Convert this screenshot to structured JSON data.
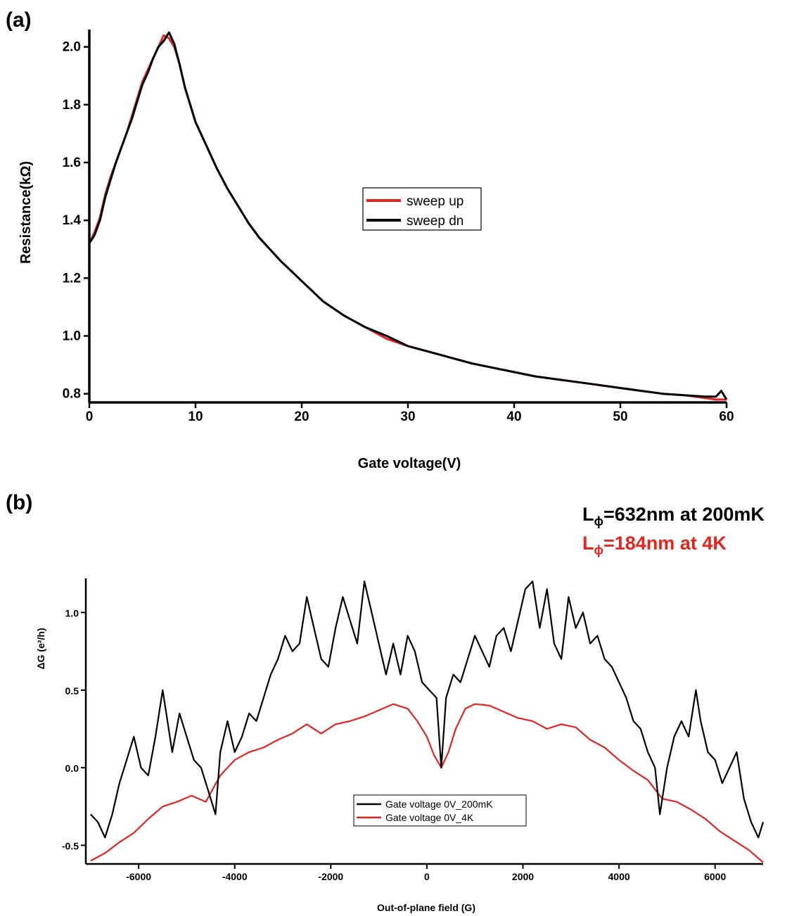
{
  "figure": {
    "panel_a_label": "(a)",
    "panel_b_label": "(b)",
    "annotation_line1_prefix": "L",
    "annotation_line1_sub": "ϕ",
    "annotation_line1_rest": "=632nm at 200mK",
    "annotation_line2_prefix": "L",
    "annotation_line2_sub": "ϕ",
    "annotation_line2_rest": "=184nm at 4K",
    "annotation_line1_color": "#000000",
    "annotation_line2_color": "#e8231d"
  },
  "chart_data": [
    {
      "type": "line",
      "xlabel": "Gate voltage(V)",
      "ylabel": "Resistance(kΩ)",
      "xlim": [
        0,
        60
      ],
      "ylim": [
        0.77,
        2.06
      ],
      "xticks": [
        0,
        10,
        20,
        30,
        40,
        50,
        60
      ],
      "xtick_labels": [
        "0",
        "10",
        "20",
        "30",
        "40",
        "50",
        "60"
      ],
      "yticks": [
        0.8,
        1.0,
        1.2,
        1.4,
        1.6,
        1.8,
        2.0
      ],
      "ytick_labels": [
        "0.8",
        "1.0",
        "1.2",
        "1.4",
        "1.6",
        "1.8",
        "2.0"
      ],
      "grid": false,
      "legend_position": "center",
      "series": [
        {
          "name": "sweep up",
          "color": "#e8231d",
          "x": [
            0,
            0.5,
            1,
            1.5,
            2,
            2.5,
            3,
            3.5,
            4,
            4.5,
            5,
            5.5,
            6,
            6.5,
            7,
            7.5,
            8,
            8.5,
            9,
            10,
            11,
            12,
            13,
            14,
            15,
            16,
            18,
            20,
            22,
            24,
            26,
            28,
            30,
            32,
            34,
            36,
            38,
            40,
            42,
            44,
            46,
            48,
            50,
            52,
            54,
            56,
            58,
            59,
            59.5,
            60
          ],
          "y": [
            1.32,
            1.36,
            1.41,
            1.49,
            1.55,
            1.6,
            1.65,
            1.7,
            1.76,
            1.82,
            1.88,
            1.92,
            1.96,
            2.0,
            2.04,
            2.03,
            2.0,
            1.94,
            1.86,
            1.74,
            1.66,
            1.58,
            1.51,
            1.45,
            1.39,
            1.34,
            1.26,
            1.19,
            1.12,
            1.07,
            1.03,
            0.99,
            0.965,
            0.945,
            0.925,
            0.905,
            0.89,
            0.875,
            0.86,
            0.85,
            0.84,
            0.83,
            0.82,
            0.81,
            0.8,
            0.795,
            0.785,
            0.78,
            0.78,
            0.78
          ]
        },
        {
          "name": "sweep dn",
          "color": "#000000",
          "x": [
            0,
            0.5,
            1,
            1.5,
            2,
            2.5,
            3,
            3.5,
            4,
            4.5,
            5,
            5.5,
            6,
            6.5,
            7,
            7.5,
            8,
            8.5,
            9,
            10,
            11,
            12,
            13,
            14,
            15,
            16,
            18,
            20,
            22,
            24,
            26,
            28,
            30,
            32,
            34,
            36,
            38,
            40,
            42,
            44,
            46,
            48,
            50,
            52,
            54,
            56,
            58,
            59,
            59.5,
            60
          ],
          "y": [
            1.32,
            1.35,
            1.4,
            1.48,
            1.54,
            1.6,
            1.65,
            1.7,
            1.75,
            1.81,
            1.87,
            1.91,
            1.96,
            2.0,
            2.02,
            2.05,
            2.01,
            1.94,
            1.86,
            1.74,
            1.66,
            1.58,
            1.51,
            1.45,
            1.39,
            1.34,
            1.26,
            1.19,
            1.12,
            1.07,
            1.03,
            1.0,
            0.965,
            0.945,
            0.925,
            0.905,
            0.89,
            0.875,
            0.86,
            0.85,
            0.84,
            0.83,
            0.82,
            0.81,
            0.8,
            0.795,
            0.79,
            0.79,
            0.81,
            0.78
          ]
        }
      ]
    },
    {
      "type": "line",
      "xlabel": "Out-of-plane field (G)",
      "ylabel": "ΔG (e²/h)",
      "xlim": [
        -7100,
        7000
      ],
      "ylim": [
        -0.62,
        1.22
      ],
      "xticks": [
        -6000,
        -4000,
        -2000,
        0,
        2000,
        4000,
        6000
      ],
      "xtick_labels": [
        "-6000",
        "-4000",
        "-2000",
        "0",
        "2000",
        "4000",
        "6000"
      ],
      "yticks": [
        -0.5,
        0.0,
        0.5,
        1.0
      ],
      "ytick_labels": [
        "-0.5",
        "0.0",
        "0.5",
        "1.0"
      ],
      "grid": false,
      "legend_position": "bottom-center",
      "series": [
        {
          "name": "Gate voltage 0V_200mK",
          "color": "#000000",
          "x": [
            -7000,
            -6850,
            -6700,
            -6550,
            -6400,
            -6250,
            -6100,
            -5950,
            -5800,
            -5650,
            -5500,
            -5400,
            -5300,
            -5150,
            -5000,
            -4850,
            -4700,
            -4550,
            -4400,
            -4300,
            -4150,
            -4000,
            -3850,
            -3700,
            -3550,
            -3400,
            -3250,
            -3100,
            -2950,
            -2800,
            -2650,
            -2500,
            -2350,
            -2200,
            -2050,
            -1900,
            -1750,
            -1600,
            -1450,
            -1300,
            -1150,
            -1000,
            -850,
            -700,
            -550,
            -400,
            -250,
            -100,
            50,
            200,
            300,
            400,
            550,
            700,
            850,
            1000,
            1150,
            1300,
            1450,
            1600,
            1750,
            1900,
            2050,
            2200,
            2350,
            2500,
            2650,
            2800,
            2950,
            3100,
            3250,
            3400,
            3550,
            3700,
            3850,
            4000,
            4150,
            4300,
            4450,
            4600,
            4750,
            4850,
            5000,
            5150,
            5300,
            5450,
            5600,
            5700,
            5850,
            6000,
            6150,
            6300,
            6450,
            6600,
            6750,
            6900,
            7000
          ],
          "y": [
            -0.3,
            -0.35,
            -0.45,
            -0.3,
            -0.1,
            0.05,
            0.2,
            0.0,
            -0.05,
            0.2,
            0.5,
            0.3,
            0.1,
            0.35,
            0.2,
            0.05,
            0.0,
            -0.15,
            -0.3,
            0.1,
            0.3,
            0.1,
            0.2,
            0.35,
            0.3,
            0.45,
            0.6,
            0.7,
            0.85,
            0.75,
            0.8,
            1.1,
            0.9,
            0.7,
            0.65,
            0.9,
            1.1,
            0.95,
            0.8,
            1.2,
            1.0,
            0.8,
            0.6,
            0.8,
            0.6,
            0.85,
            0.75,
            0.55,
            0.5,
            0.45,
            0.0,
            0.45,
            0.6,
            0.55,
            0.7,
            0.85,
            0.75,
            0.65,
            0.85,
            0.9,
            0.75,
            0.95,
            1.15,
            1.2,
            0.9,
            1.15,
            0.8,
            0.7,
            1.1,
            0.9,
            1.0,
            0.8,
            0.85,
            0.7,
            0.65,
            0.55,
            0.45,
            0.3,
            0.25,
            0.1,
            0.0,
            -0.3,
            0.0,
            0.2,
            0.3,
            0.2,
            0.5,
            0.3,
            0.1,
            0.05,
            -0.1,
            0.0,
            0.1,
            -0.2,
            -0.35,
            -0.45,
            -0.35
          ]
        },
        {
          "name": "Gate voltage 0V_4K",
          "color": "#e8231d",
          "x": [
            -7000,
            -6700,
            -6400,
            -6100,
            -5800,
            -5500,
            -5200,
            -4900,
            -4600,
            -4300,
            -4000,
            -3700,
            -3400,
            -3100,
            -2800,
            -2500,
            -2200,
            -1900,
            -1600,
            -1300,
            -1000,
            -700,
            -400,
            -200,
            0,
            150,
            300,
            450,
            600,
            800,
            1000,
            1300,
            1600,
            1900,
            2200,
            2500,
            2800,
            3100,
            3400,
            3700,
            4000,
            4300,
            4600,
            4900,
            5200,
            5500,
            5800,
            6100,
            6400,
            6700,
            7000
          ],
          "y": [
            -0.6,
            -0.55,
            -0.48,
            -0.42,
            -0.33,
            -0.25,
            -0.22,
            -0.18,
            -0.22,
            -0.05,
            0.05,
            0.1,
            0.13,
            0.18,
            0.22,
            0.28,
            0.22,
            0.28,
            0.3,
            0.33,
            0.37,
            0.41,
            0.38,
            0.3,
            0.2,
            0.08,
            0.0,
            0.1,
            0.25,
            0.38,
            0.41,
            0.4,
            0.36,
            0.32,
            0.3,
            0.25,
            0.28,
            0.26,
            0.18,
            0.13,
            0.05,
            -0.02,
            -0.08,
            -0.2,
            -0.22,
            -0.27,
            -0.33,
            -0.41,
            -0.47,
            -0.53,
            -0.61
          ]
        }
      ]
    }
  ]
}
